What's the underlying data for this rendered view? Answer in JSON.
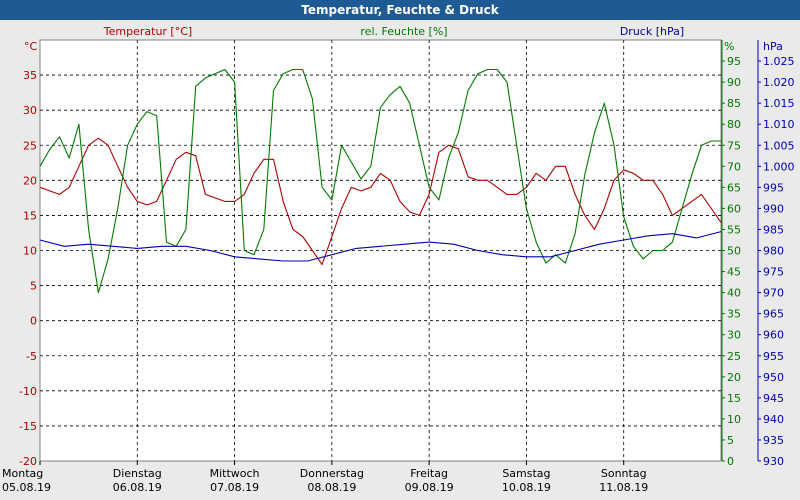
{
  "window": {
    "title": "Temperatur, Feuchte & Druck"
  },
  "colors": {
    "temperature": "#b00000",
    "humidity": "#007a00",
    "pressure": "#0000b0",
    "grid": "#000000",
    "plot_bg": "#ffffff",
    "titlebar": "#1e5a94"
  },
  "chart_data": {
    "type": "line",
    "series_labels": {
      "temperature": "Temperatur [°C]",
      "humidity": "rel. Feuchte [%]",
      "pressure": "Druck [hPa]"
    },
    "axes": {
      "left": {
        "unit": "°C",
        "range": [
          -20,
          40
        ],
        "ticks": [
          -20,
          -15,
          -10,
          -5,
          0,
          5,
          10,
          15,
          20,
          25,
          30,
          35
        ]
      },
      "right1": {
        "unit": "%",
        "range": [
          0,
          100
        ],
        "ticks": [
          0,
          5,
          10,
          15,
          20,
          25,
          30,
          35,
          40,
          45,
          50,
          55,
          60,
          65,
          70,
          75,
          80,
          85,
          90,
          95
        ]
      },
      "right2": {
        "unit": "hPa",
        "range": [
          930,
          1030
        ],
        "ticks": [
          "930",
          "935",
          "940",
          "945",
          "950",
          "955",
          "960",
          "965",
          "970",
          "975",
          "980",
          "985",
          "990",
          "995",
          "1.000",
          "1.005",
          "1.010",
          "1.015",
          "1.020",
          "1.025"
        ]
      }
    },
    "x_range": [
      0,
      7.0
    ],
    "day_labels": [
      {
        "day": "Montag",
        "date": "05.08.19"
      },
      {
        "day": "Dienstag",
        "date": "06.08.19"
      },
      {
        "day": "Mittwoch",
        "date": "07.08.19"
      },
      {
        "day": "Donnerstag",
        "date": "08.08.19"
      },
      {
        "day": "Freitag",
        "date": "09.08.19"
      },
      {
        "day": "Samstag",
        "date": "10.08.19"
      },
      {
        "day": "Sonntag",
        "date": "11.08.19"
      }
    ],
    "grid": true,
    "series": [
      {
        "key": "temperature",
        "axis": "left",
        "x": [
          0,
          0.1,
          0.2,
          0.3,
          0.4,
          0.5,
          0.6,
          0.7,
          0.8,
          0.9,
          1.0,
          1.1,
          1.2,
          1.3,
          1.4,
          1.5,
          1.6,
          1.7,
          1.8,
          1.9,
          2.0,
          2.1,
          2.2,
          2.3,
          2.4,
          2.5,
          2.6,
          2.7,
          2.8,
          2.9,
          3.0,
          3.1,
          3.2,
          3.3,
          3.4,
          3.5,
          3.6,
          3.7,
          3.8,
          3.9,
          4.0,
          4.1,
          4.2,
          4.3,
          4.4,
          4.5,
          4.6,
          4.7,
          4.8,
          4.9,
          5.0,
          5.1,
          5.2,
          5.3,
          5.4,
          5.5,
          5.6,
          5.7,
          5.8,
          5.9,
          6.0,
          6.1,
          6.2,
          6.3,
          6.4,
          6.5,
          6.6,
          6.7,
          6.8,
          6.9,
          7.0
        ],
        "y": [
          19,
          18.5,
          18,
          19,
          22,
          25,
          26,
          25,
          22,
          19,
          17,
          16.5,
          17,
          20,
          23,
          24,
          23.5,
          18,
          17.5,
          17,
          17,
          18,
          21,
          23,
          23,
          17,
          13,
          12,
          10,
          8,
          12,
          16,
          19,
          18.5,
          19,
          21,
          20,
          17,
          15.5,
          15,
          18,
          24,
          25,
          24.5,
          20.5,
          20,
          20,
          19,
          18,
          18,
          19,
          21,
          20,
          22,
          22,
          18,
          15,
          13,
          16,
          20,
          21.5,
          21,
          20,
          20,
          18,
          15,
          16,
          17,
          18,
          16,
          14
        ]
      },
      {
        "key": "humidity",
        "axis": "right1",
        "x": [
          0,
          0.1,
          0.2,
          0.3,
          0.4,
          0.5,
          0.6,
          0.7,
          0.8,
          0.9,
          1.0,
          1.1,
          1.2,
          1.3,
          1.4,
          1.5,
          1.6,
          1.7,
          1.8,
          1.9,
          2.0,
          2.1,
          2.2,
          2.3,
          2.4,
          2.5,
          2.6,
          2.7,
          2.8,
          2.9,
          3.0,
          3.1,
          3.2,
          3.3,
          3.4,
          3.5,
          3.6,
          3.7,
          3.8,
          3.9,
          4.0,
          4.1,
          4.2,
          4.3,
          4.4,
          4.5,
          4.6,
          4.7,
          4.8,
          4.9,
          5.0,
          5.1,
          5.2,
          5.3,
          5.4,
          5.5,
          5.6,
          5.7,
          5.8,
          5.9,
          6.0,
          6.1,
          6.2,
          6.3,
          6.4,
          6.5,
          6.6,
          6.7,
          6.8,
          6.9,
          7.0
        ],
        "y": [
          70,
          74,
          77,
          72,
          80,
          55,
          40,
          48,
          60,
          75,
          80,
          83,
          82,
          52,
          51,
          55,
          89,
          91,
          92,
          93,
          90,
          50,
          49,
          55,
          88,
          92,
          93,
          93,
          86,
          65,
          62,
          75,
          71,
          67,
          70,
          84,
          87,
          89,
          85,
          75,
          65,
          62,
          72,
          78,
          88,
          92,
          93,
          93,
          90,
          75,
          60,
          52,
          47,
          49,
          47,
          54,
          68,
          78,
          85,
          75,
          58,
          51,
          48,
          50,
          50,
          52,
          60,
          68,
          75,
          76,
          76
        ]
      },
      {
        "key": "pressure",
        "axis": "right2",
        "x": [
          0,
          0.25,
          0.5,
          0.75,
          1.0,
          1.25,
          1.5,
          1.75,
          2.0,
          2.25,
          2.5,
          2.75,
          3.0,
          3.25,
          3.5,
          3.75,
          4.0,
          4.25,
          4.5,
          4.75,
          5.0,
          5.25,
          5.5,
          5.75,
          6.0,
          6.25,
          6.5,
          6.75,
          7.0
        ],
        "y": [
          982.5,
          981,
          981.5,
          981,
          980.5,
          981,
          981,
          980,
          978.5,
          978,
          977.5,
          977.5,
          979,
          980.5,
          981,
          981.5,
          982,
          981.5,
          980,
          979,
          978.5,
          978.5,
          980,
          981.5,
          982.5,
          983.5,
          984,
          983,
          984.5
        ]
      }
    ]
  }
}
